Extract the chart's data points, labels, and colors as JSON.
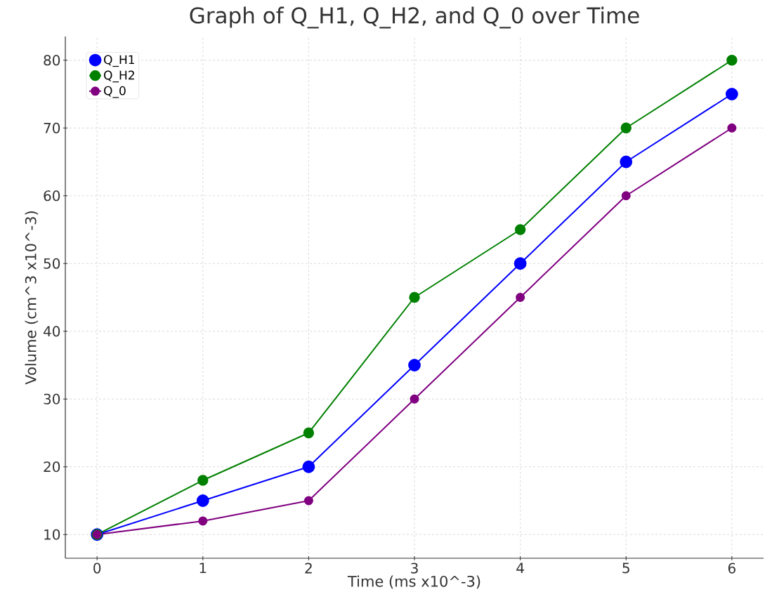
{
  "chart_data": {
    "type": "line",
    "title": "Graph of Q_H1, Q_H2, and Q_0 over Time",
    "xlabel": "Time (ms x10^-3)",
    "ylabel": "Volume (cm^3 x10^-3)",
    "x": [
      0,
      1,
      2,
      3,
      4,
      5,
      6
    ],
    "series": [
      {
        "name": "Q_H1",
        "color": "#0000ff",
        "values": [
          10,
          15,
          20,
          35,
          50,
          65,
          75
        ]
      },
      {
        "name": "Q_H2",
        "color": "#008000",
        "values": [
          10,
          18,
          25,
          45,
          55,
          70,
          80
        ]
      },
      {
        "name": "Q_0",
        "color": "#800080",
        "values": [
          10,
          12,
          15,
          30,
          45,
          60,
          70
        ]
      }
    ],
    "xlim": [
      -0.3,
      6.3
    ],
    "ylim": [
      6.5,
      83.5
    ],
    "xticks": [
      0,
      1,
      2,
      3,
      4,
      5,
      6
    ],
    "yticks": [
      10,
      20,
      30,
      40,
      50,
      60,
      70,
      80
    ],
    "grid": true,
    "legend": "top left",
    "marker": "circle",
    "line_style": "solid"
  }
}
